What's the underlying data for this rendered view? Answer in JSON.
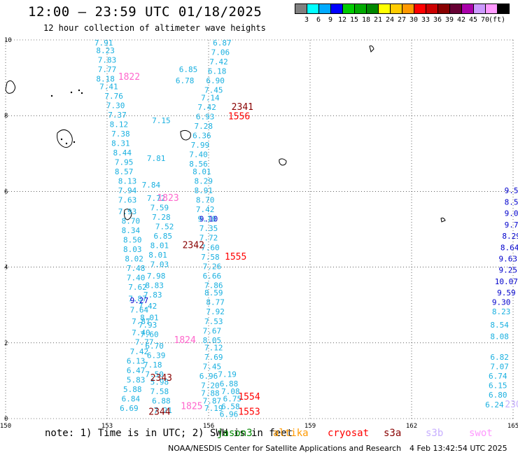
{
  "header": {
    "title": "12:00 – 23:59 UTC 01/18/2025",
    "subtitle": "12 hour collection of altimeter wave heights"
  },
  "colorbar": {
    "unit": "(ft)",
    "bins": [
      {
        "label": "",
        "color": "#808080"
      },
      {
        "label": "3",
        "color": "#00ffff"
      },
      {
        "label": "6",
        "color": "#00aaff"
      },
      {
        "label": "9",
        "color": "#0000ff"
      },
      {
        "label": "12",
        "color": "#00cc00"
      },
      {
        "label": "15",
        "color": "#00aa00"
      },
      {
        "label": "18",
        "color": "#008800"
      },
      {
        "label": "21",
        "color": "#ffff00"
      },
      {
        "label": "24",
        "color": "#ffcc00"
      },
      {
        "label": "27",
        "color": "#ff9900"
      },
      {
        "label": "30",
        "color": "#ff0000"
      },
      {
        "label": "33",
        "color": "#cc0000"
      },
      {
        "label": "36",
        "color": "#880000"
      },
      {
        "label": "39",
        "color": "#660033"
      },
      {
        "label": "42",
        "color": "#aa00aa"
      },
      {
        "label": "45",
        "color": "#cc99ff"
      },
      {
        "label": "70",
        "color": "#ff99ff"
      },
      {
        "label": "",
        "color": "#000000"
      }
    ]
  },
  "chart_data": {
    "type": "scatter",
    "title": "12:00 – 23:59 UTC 01/18/2025",
    "subtitle": "12 hour collection of altimeter wave heights",
    "xlim": [
      150,
      165
    ],
    "ylim": [
      0,
      10
    ],
    "x_ticks": [
      "150",
      "153",
      "156",
      "159",
      "162",
      "165"
    ],
    "y_ticks": [
      "0",
      "2",
      "4",
      "6",
      "8",
      "10"
    ],
    "grid": true,
    "tracks": [
      {
        "name": "track-1",
        "color": "#1ab0e0",
        "points": [
          {
            "x": 152.9,
            "y": 9.85,
            "v": "7.91"
          },
          {
            "x": 152.95,
            "y": 9.65,
            "v": "8.23"
          },
          {
            "x": 153.0,
            "y": 9.4,
            "v": "7.83"
          },
          {
            "x": 153.0,
            "y": 9.15,
            "v": "7.77"
          },
          {
            "x": 152.95,
            "y": 8.9,
            "v": "8.18"
          },
          {
            "x": 153.05,
            "y": 8.7,
            "v": "7.41"
          },
          {
            "x": 153.2,
            "y": 8.45,
            "v": "7.76"
          },
          {
            "x": 153.25,
            "y": 8.2,
            "v": "7.30"
          },
          {
            "x": 153.3,
            "y": 7.95,
            "v": "7.37"
          },
          {
            "x": 153.35,
            "y": 7.7,
            "v": "8.12"
          },
          {
            "x": 153.4,
            "y": 7.45,
            "v": "7.38"
          },
          {
            "x": 153.4,
            "y": 7.2,
            "v": "8.31"
          },
          {
            "x": 153.45,
            "y": 6.95,
            "v": "8.44"
          },
          {
            "x": 153.5,
            "y": 6.7,
            "v": "7.95"
          },
          {
            "x": 153.5,
            "y": 6.45,
            "v": "8.57"
          },
          {
            "x": 153.6,
            "y": 6.2,
            "v": "8.13"
          },
          {
            "x": 153.6,
            "y": 5.95,
            "v": "7.94"
          },
          {
            "x": 153.6,
            "y": 5.7,
            "v": "7.63"
          },
          {
            "x": 153.6,
            "y": 5.4,
            "v": "7.93"
          },
          {
            "x": 153.7,
            "y": 5.15,
            "v": "8.70"
          },
          {
            "x": 153.7,
            "y": 4.9,
            "v": "8.34"
          },
          {
            "x": 153.75,
            "y": 4.65,
            "v": "8.50"
          },
          {
            "x": 153.75,
            "y": 4.4,
            "v": "8.03"
          },
          {
            "x": 153.8,
            "y": 4.15,
            "v": "8.02"
          },
          {
            "x": 153.85,
            "y": 3.9,
            "v": "7.48"
          },
          {
            "x": 153.85,
            "y": 3.65,
            "v": "7.40"
          },
          {
            "x": 153.9,
            "y": 3.4,
            "v": "7.62"
          },
          {
            "x": 153.9,
            "y": 3.1,
            "v": "7.87"
          },
          {
            "x": 153.95,
            "y": 2.8,
            "v": "7.64"
          },
          {
            "x": 154.0,
            "y": 2.5,
            "v": "7.87"
          },
          {
            "x": 154.0,
            "y": 2.2,
            "v": "7.40"
          },
          {
            "x": 154.1,
            "y": 1.95,
            "v": "7.77"
          },
          {
            "x": 153.95,
            "y": 1.7,
            "v": "7.42"
          },
          {
            "x": 153.85,
            "y": 1.45,
            "v": "6.13"
          },
          {
            "x": 153.85,
            "y": 1.2,
            "v": "6.47"
          },
          {
            "x": 153.85,
            "y": 0.95,
            "v": "5.83"
          },
          {
            "x": 153.75,
            "y": 0.7,
            "v": "5.88"
          },
          {
            "x": 153.7,
            "y": 0.45,
            "v": "6.84"
          },
          {
            "x": 153.65,
            "y": 0.2,
            "v": "6.69"
          }
        ]
      },
      {
        "name": "track-2",
        "color": "#1ab0e0",
        "points": [
          {
            "x": 155.4,
            "y": 9.15,
            "v": "6.85"
          },
          {
            "x": 155.3,
            "y": 8.85,
            "v": "6.78"
          },
          {
            "x": 154.6,
            "y": 7.8,
            "v": "7.15"
          },
          {
            "x": 154.45,
            "y": 6.8,
            "v": "7.81"
          },
          {
            "x": 154.3,
            "y": 6.1,
            "v": "7.84"
          },
          {
            "x": 154.45,
            "y": 5.75,
            "v": "7.72"
          },
          {
            "x": 154.55,
            "y": 5.5,
            "v": "7.59"
          },
          {
            "x": 154.6,
            "y": 5.25,
            "v": "7.28"
          },
          {
            "x": 154.7,
            "y": 5.0,
            "v": "7.52"
          },
          {
            "x": 154.65,
            "y": 4.75,
            "v": "6.85"
          },
          {
            "x": 154.55,
            "y": 4.5,
            "v": "8.01"
          },
          {
            "x": 154.5,
            "y": 4.25,
            "v": "8.01"
          },
          {
            "x": 154.55,
            "y": 4.0,
            "v": "7.03"
          },
          {
            "x": 154.45,
            "y": 3.7,
            "v": "7.98"
          },
          {
            "x": 154.4,
            "y": 3.45,
            "v": "8.83"
          },
          {
            "x": 154.35,
            "y": 3.2,
            "v": "7.83"
          },
          {
            "x": 154.2,
            "y": 2.9,
            "v": "7.42"
          },
          {
            "x": 154.25,
            "y": 2.6,
            "v": "8.01"
          },
          {
            "x": 154.2,
            "y": 2.4,
            "v": "7.93"
          },
          {
            "x": 154.25,
            "y": 2.15,
            "v": "7.60"
          },
          {
            "x": 154.4,
            "y": 1.85,
            "v": "6.70"
          },
          {
            "x": 154.45,
            "y": 1.6,
            "v": "6.39"
          },
          {
            "x": 154.35,
            "y": 1.35,
            "v": "7.18"
          },
          {
            "x": 154.4,
            "y": 1.1,
            "v": "7.50"
          },
          {
            "x": 154.55,
            "y": 0.9,
            "v": "5.98"
          },
          {
            "x": 154.55,
            "y": 0.65,
            "v": "7.58"
          },
          {
            "x": 154.6,
            "y": 0.4,
            "v": "6.88"
          },
          {
            "x": 154.65,
            "y": 0.15,
            "v": "7.21"
          }
        ]
      },
      {
        "name": "track-3",
        "color": "#1ab0e0",
        "points": [
          {
            "x": 156.4,
            "y": 9.85,
            "v": "6.87"
          },
          {
            "x": 156.35,
            "y": 9.6,
            "v": "7.06"
          },
          {
            "x": 156.3,
            "y": 9.35,
            "v": "7.42"
          },
          {
            "x": 156.25,
            "y": 9.1,
            "v": "6.18"
          },
          {
            "x": 156.2,
            "y": 8.85,
            "v": "6.90"
          },
          {
            "x": 156.15,
            "y": 8.6,
            "v": "7.45"
          },
          {
            "x": 156.05,
            "y": 8.4,
            "v": "7.14"
          },
          {
            "x": 155.95,
            "y": 8.15,
            "v": "7.42"
          },
          {
            "x": 155.9,
            "y": 7.9,
            "v": "6.93"
          },
          {
            "x": 155.85,
            "y": 7.65,
            "v": "7.28"
          },
          {
            "x": 155.8,
            "y": 7.4,
            "v": "6.36"
          },
          {
            "x": 155.75,
            "y": 7.15,
            "v": "7.99"
          },
          {
            "x": 155.7,
            "y": 6.9,
            "v": "7.40"
          },
          {
            "x": 155.7,
            "y": 6.65,
            "v": "8.56"
          },
          {
            "x": 155.8,
            "y": 6.45,
            "v": "8.01"
          },
          {
            "x": 155.85,
            "y": 6.2,
            "v": "8.29"
          },
          {
            "x": 155.85,
            "y": 5.95,
            "v": "8.91"
          },
          {
            "x": 155.9,
            "y": 5.7,
            "v": "8.70"
          },
          {
            "x": 155.9,
            "y": 5.45,
            "v": "7.42"
          },
          {
            "x": 155.95,
            "y": 5.2,
            "v": "9.10"
          },
          {
            "x": 156.0,
            "y": 4.95,
            "v": "7.35"
          },
          {
            "x": 156.0,
            "y": 4.7,
            "v": "7.72"
          },
          {
            "x": 156.05,
            "y": 4.45,
            "v": "7.60"
          },
          {
            "x": 156.05,
            "y": 4.2,
            "v": "7.58"
          },
          {
            "x": 156.1,
            "y": 3.95,
            "v": "7.26"
          },
          {
            "x": 156.1,
            "y": 3.7,
            "v": "6.66"
          },
          {
            "x": 156.15,
            "y": 3.45,
            "v": "7.86"
          },
          {
            "x": 156.15,
            "y": 3.25,
            "v": "8.59"
          },
          {
            "x": 156.2,
            "y": 3.0,
            "v": "8.77"
          },
          {
            "x": 156.2,
            "y": 2.75,
            "v": "7.92"
          },
          {
            "x": 156.15,
            "y": 2.5,
            "v": "7.53"
          },
          {
            "x": 156.1,
            "y": 2.25,
            "v": "7.67"
          },
          {
            "x": 156.1,
            "y": 2.0,
            "v": "8.05"
          },
          {
            "x": 156.15,
            "y": 1.8,
            "v": "7.12"
          },
          {
            "x": 156.15,
            "y": 1.55,
            "v": "7.69"
          },
          {
            "x": 156.1,
            "y": 1.3,
            "v": "7.45"
          },
          {
            "x": 156.0,
            "y": 1.05,
            "v": "6.96"
          },
          {
            "x": 156.05,
            "y": 0.8,
            "v": "7.20"
          },
          {
            "x": 156.05,
            "y": 0.6,
            "v": "7.88"
          },
          {
            "x": 156.1,
            "y": 0.4,
            "v": "7.87"
          },
          {
            "x": 156.15,
            "y": 0.2,
            "v": "7.19"
          }
        ]
      },
      {
        "name": "track-3-south",
        "color": "#1ab0e0",
        "points": [
          {
            "x": 156.55,
            "y": 1.1,
            "v": "7.19"
          },
          {
            "x": 156.6,
            "y": 0.85,
            "v": "6.88"
          },
          {
            "x": 156.65,
            "y": 0.65,
            "v": "7.08"
          },
          {
            "x": 156.7,
            "y": 0.45,
            "v": "6.75"
          },
          {
            "x": 156.65,
            "y": 0.25,
            "v": "6.58"
          },
          {
            "x": 156.6,
            "y": 0.05,
            "v": "6.96"
          }
        ]
      },
      {
        "name": "track-4",
        "color": "#1ab0e0",
        "points": [
          {
            "x": 164.6,
            "y": 1.55,
            "v": "6.82"
          },
          {
            "x": 164.6,
            "y": 1.3,
            "v": "7.07"
          },
          {
            "x": 164.55,
            "y": 1.05,
            "v": "6.74"
          },
          {
            "x": 164.55,
            "y": 0.8,
            "v": "6.15"
          },
          {
            "x": 164.55,
            "y": 0.55,
            "v": "6.80"
          },
          {
            "x": 164.45,
            "y": 0.3,
            "v": "6.24"
          },
          {
            "x": 164.6,
            "y": 2.1,
            "v": "8.08"
          },
          {
            "x": 164.6,
            "y": 2.4,
            "v": "8.54"
          },
          {
            "x": 164.65,
            "y": 2.75,
            "v": "8.23"
          }
        ]
      },
      {
        "name": "track-4-high",
        "color": "#0000cc",
        "points": [
          {
            "x": 164.65,
            "y": 3.0,
            "v": "9.30"
          },
          {
            "x": 164.8,
            "y": 3.25,
            "v": "9.59"
          },
          {
            "x": 164.8,
            "y": 3.55,
            "v": "10.07"
          },
          {
            "x": 164.85,
            "y": 3.85,
            "v": "9.25"
          },
          {
            "x": 164.85,
            "y": 4.15,
            "v": "9.63"
          },
          {
            "x": 164.9,
            "y": 4.45,
            "v": "8.64"
          },
          {
            "x": 164.95,
            "y": 4.75,
            "v": "8.29"
          },
          {
            "x": 164.95,
            "y": 5.05,
            "v": "9.7"
          },
          {
            "x": 164.95,
            "y": 5.35,
            "v": "9.0"
          },
          {
            "x": 164.95,
            "y": 5.65,
            "v": "8.5"
          },
          {
            "x": 164.95,
            "y": 5.95,
            "v": "9.5"
          }
        ]
      },
      {
        "name": "track-other-high",
        "color": "#0000cc",
        "points": [
          {
            "x": 153.95,
            "y": 3.05,
            "v": "9.27"
          },
          {
            "x": 156.0,
            "y": 5.2,
            "v": "9.10"
          }
        ]
      }
    ],
    "pass_labels": [
      {
        "text": "1822",
        "x": 153.65,
        "y": 8.95,
        "color": "#ff66cc"
      },
      {
        "text": "1823",
        "x": 154.8,
        "y": 5.75,
        "color": "#ff66cc"
      },
      {
        "text": "1824",
        "x": 155.3,
        "y": 2.0,
        "color": "#ff66cc"
      },
      {
        "text": "1825",
        "x": 155.5,
        "y": 0.25,
        "color": "#ff66cc"
      },
      {
        "text": "2341",
        "x": 157.0,
        "y": 8.15,
        "color": "#880000"
      },
      {
        "text": "2342",
        "x": 155.55,
        "y": 4.5,
        "color": "#880000"
      },
      {
        "text": "2343",
        "x": 154.6,
        "y": 1.0,
        "color": "#880000"
      },
      {
        "text": "2344",
        "x": 154.55,
        "y": 0.1,
        "color": "#880000"
      },
      {
        "text": "1556",
        "x": 156.9,
        "y": 7.9,
        "color": "#ff0000"
      },
      {
        "text": "1555",
        "x": 156.8,
        "y": 4.2,
        "color": "#ff0000"
      },
      {
        "text": "1554",
        "x": 157.2,
        "y": 0.5,
        "color": "#ff0000"
      },
      {
        "text": "1553",
        "x": 157.2,
        "y": 0.1,
        "color": "#ff0000"
      },
      {
        "text": "230",
        "x": 165.0,
        "y": 0.3,
        "color": "#c8b0ff"
      }
    ]
  },
  "footer": {
    "note": "note: 1) Time is in UTC; 2) SWH is in feet",
    "satellites": [
      {
        "label": "jason3",
        "color": "#008800"
      },
      {
        "label": "altika",
        "color": "#ff9900"
      },
      {
        "label": "cryosat",
        "color": "#ff0000"
      },
      {
        "label": "s3a",
        "color": "#880000"
      },
      {
        "label": "s3b",
        "color": "#c8b0ff"
      },
      {
        "label": "swot",
        "color": "#ff99ff"
      }
    ],
    "credit": "NOAA/NESDIS Center for Satellite Applications and Research",
    "timestamp": "4 Feb 13:42:54 UTC 2025"
  }
}
